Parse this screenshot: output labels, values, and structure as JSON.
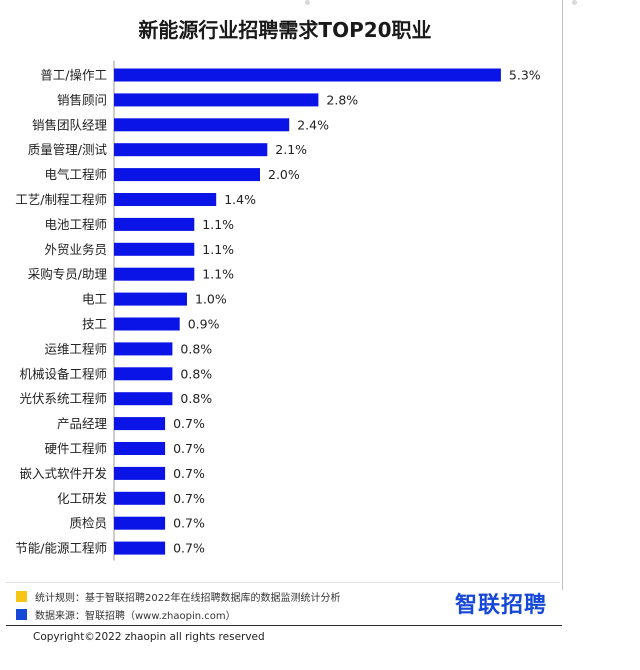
{
  "chart_data": {
    "type": "bar",
    "orientation": "horizontal",
    "title": "新能源行业招聘需求TOP20职业",
    "xlabel": "",
    "ylabel": "",
    "grid": false,
    "legend": "none",
    "categories": [
      "普工/操作工",
      "销售顾问",
      "销售团队经理",
      "质量管理/测试",
      "电气工程师",
      "工艺/制程工程师",
      "电池工程师",
      "外贸业务员",
      "采购专员/助理",
      "电工",
      "技工",
      "运维工程师",
      "机械设备工程师",
      "光伏系统工程师",
      "产品经理",
      "硬件工程师",
      "嵌入式软件开发",
      "化工研发",
      "质检员",
      "节能/能源工程师"
    ],
    "values": [
      5.3,
      2.8,
      2.4,
      2.1,
      2.0,
      1.4,
      1.1,
      1.1,
      1.1,
      1.0,
      0.9,
      0.8,
      0.8,
      0.8,
      0.7,
      0.7,
      0.7,
      0.7,
      0.7,
      0.7
    ],
    "value_labels": [
      "5.3%",
      "2.8%",
      "2.4%",
      "2.1%",
      "2.0%",
      "1.4%",
      "1.1%",
      "1.1%",
      "1.1%",
      "1.0%",
      "0.9%",
      "0.8%",
      "0.8%",
      "0.8%",
      "0.7%",
      "0.7%",
      "0.7%",
      "0.7%",
      "0.7%",
      "0.7%"
    ],
    "value_unit": "%",
    "bar_color": "#0a14e6"
  },
  "notes": [
    {
      "color": "#f5c518",
      "text": "统计规则：基于智联招聘2022年在线招聘数据库的数据监测统计分析"
    },
    {
      "color": "#1648d8",
      "text": "数据来源：智联招聘（www.zhaopin.com）"
    }
  ],
  "brand": "智联招聘",
  "copyright": "Copyright©2022 zhaopin all rights reserved"
}
